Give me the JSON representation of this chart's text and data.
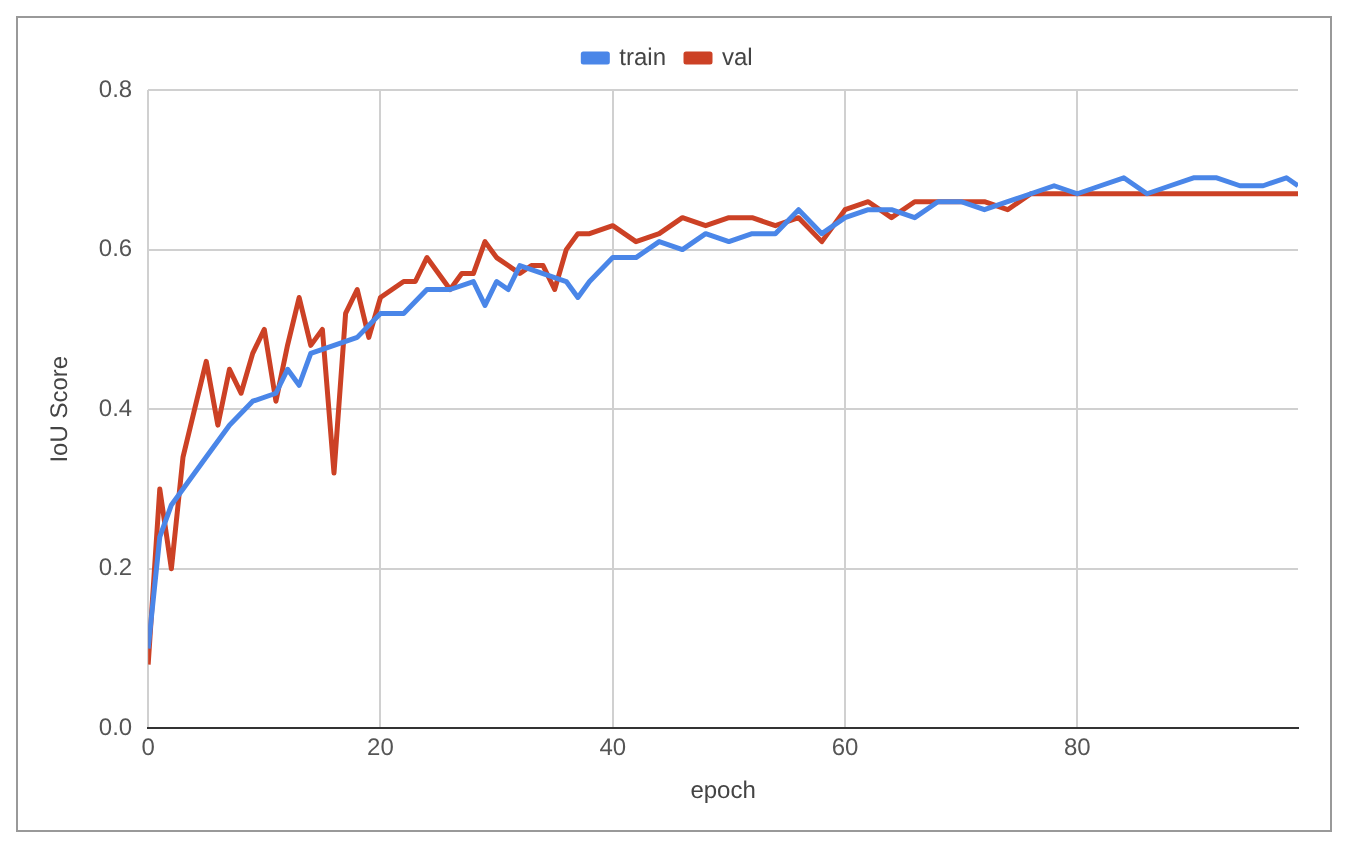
{
  "chart_data": {
    "type": "line",
    "xlabel": "epoch",
    "ylabel": "IoU Score",
    "xlim": [
      0,
      99
    ],
    "xticks": [
      0,
      20,
      40,
      60,
      80
    ],
    "ylim": [
      0,
      0.8
    ],
    "yticks": [
      {
        "value": 0,
        "label": "0.0"
      },
      {
        "value": 0.2,
        "label": "0.2"
      },
      {
        "value": 0.4,
        "label": "0.4"
      },
      {
        "value": 0.6,
        "label": "0.6"
      },
      {
        "value": 0.8,
        "label": "0.8"
      }
    ],
    "grid": true,
    "legend": "top",
    "marker": "none",
    "line_style": "solid",
    "series": [
      {
        "name": "train",
        "color": "#4a86e8",
        "x": [
          0,
          1,
          2,
          3,
          5,
          7,
          9,
          11,
          12,
          13,
          14,
          16,
          18,
          20,
          22,
          24,
          26,
          28,
          29,
          30,
          31,
          32,
          34,
          36,
          37,
          38,
          40,
          42,
          44,
          46,
          48,
          50,
          52,
          54,
          56,
          58,
          60,
          62,
          64,
          66,
          68,
          70,
          72,
          74,
          76,
          78,
          80,
          82,
          84,
          86,
          88,
          90,
          92,
          94,
          96,
          98,
          99
        ],
        "values": [
          0.1,
          0.24,
          0.28,
          0.3,
          0.34,
          0.38,
          0.41,
          0.42,
          0.45,
          0.43,
          0.47,
          0.48,
          0.49,
          0.52,
          0.52,
          0.55,
          0.55,
          0.56,
          0.53,
          0.56,
          0.55,
          0.58,
          0.57,
          0.56,
          0.54,
          0.56,
          0.59,
          0.59,
          0.61,
          0.6,
          0.62,
          0.61,
          0.62,
          0.62,
          0.65,
          0.62,
          0.64,
          0.65,
          0.65,
          0.64,
          0.66,
          0.66,
          0.65,
          0.66,
          0.67,
          0.68,
          0.67,
          0.68,
          0.69,
          0.67,
          0.68,
          0.69,
          0.69,
          0.68,
          0.68,
          0.69,
          0.68
        ]
      },
      {
        "name": "val",
        "color": "#cc4125",
        "x": [
          0,
          1,
          2,
          3,
          4,
          5,
          6,
          7,
          8,
          9,
          10,
          11,
          12,
          13,
          14,
          15,
          16,
          17,
          18,
          19,
          20,
          21,
          22,
          23,
          24,
          25,
          26,
          27,
          28,
          29,
          30,
          31,
          32,
          33,
          34,
          35,
          36,
          37,
          38,
          40,
          42,
          44,
          46,
          48,
          50,
          52,
          54,
          56,
          58,
          60,
          62,
          64,
          66,
          68,
          70,
          72,
          74,
          76,
          80,
          85,
          90,
          99
        ],
        "values": [
          0.08,
          0.3,
          0.2,
          0.34,
          0.4,
          0.46,
          0.38,
          0.45,
          0.42,
          0.47,
          0.5,
          0.41,
          0.48,
          0.54,
          0.48,
          0.5,
          0.32,
          0.52,
          0.55,
          0.49,
          0.54,
          0.55,
          0.56,
          0.56,
          0.59,
          0.57,
          0.55,
          0.57,
          0.57,
          0.61,
          0.59,
          0.58,
          0.57,
          0.58,
          0.58,
          0.55,
          0.6,
          0.62,
          0.62,
          0.63,
          0.61,
          0.62,
          0.64,
          0.63,
          0.64,
          0.64,
          0.63,
          0.64,
          0.61,
          0.65,
          0.66,
          0.64,
          0.66,
          0.66,
          0.66,
          0.66,
          0.65,
          0.67,
          0.67,
          0.67,
          0.67,
          0.67
        ]
      }
    ]
  }
}
